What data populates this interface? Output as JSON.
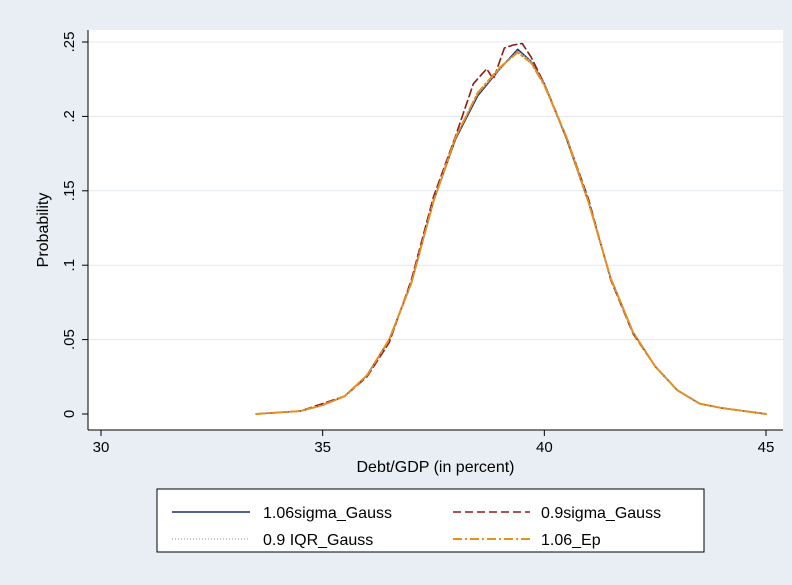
{
  "chart_data": {
    "type": "line",
    "title": "",
    "xlabel": "Debt/GDP (in percent)",
    "ylabel": "Probability",
    "xlim": [
      30,
      45
    ],
    "ylim": [
      0,
      0.25
    ],
    "x_ticks": [
      30,
      35,
      40,
      45
    ],
    "x_tick_labels": [
      "30",
      "35",
      "40",
      "45"
    ],
    "y_ticks": [
      0,
      0.05,
      0.1,
      0.15,
      0.2,
      0.25
    ],
    "y_tick_labels": [
      "0",
      ".05",
      ".1",
      ".15",
      ".2",
      ".25"
    ],
    "grid": "horizontal",
    "legend_position": "bottom",
    "series": [
      {
        "name": "1.06sigma_Gauss",
        "color": "#1a2f6b",
        "style": "solid",
        "x": [
          33.5,
          34.0,
          34.5,
          35.0,
          35.5,
          36.0,
          36.5,
          37.0,
          37.5,
          38.0,
          38.5,
          39.0,
          39.4,
          39.7,
          40.0,
          40.5,
          41.0,
          41.5,
          42.0,
          42.5,
          43.0,
          43.5,
          44.0,
          44.5,
          45.0
        ],
        "values": [
          0.0,
          0.001,
          0.002,
          0.006,
          0.012,
          0.026,
          0.05,
          0.088,
          0.143,
          0.185,
          0.214,
          0.232,
          0.245,
          0.237,
          0.222,
          0.185,
          0.142,
          0.091,
          0.055,
          0.032,
          0.016,
          0.007,
          0.004,
          0.002,
          0.0
        ]
      },
      {
        "name": "0.9sigma_Gauss",
        "color": "#8b1a1a",
        "style": "dashed",
        "x": [
          33.5,
          34.0,
          34.5,
          35.0,
          35.5,
          36.0,
          36.5,
          37.0,
          37.5,
          38.0,
          38.4,
          38.7,
          38.85,
          39.1,
          39.3,
          39.5,
          39.7,
          40.0,
          40.5,
          41.0,
          41.5,
          42.0,
          42.5,
          43.0,
          43.5,
          44.0,
          44.5,
          45.0
        ],
        "values": [
          0.0,
          0.001,
          0.002,
          0.007,
          0.012,
          0.025,
          0.048,
          0.09,
          0.146,
          0.187,
          0.222,
          0.232,
          0.225,
          0.246,
          0.248,
          0.249,
          0.24,
          0.222,
          0.186,
          0.144,
          0.09,
          0.054,
          0.032,
          0.016,
          0.007,
          0.004,
          0.002,
          0.0
        ]
      },
      {
        "name": "0.9 IQR_Gauss",
        "color": "#9aa6b2",
        "style": "dotted",
        "x": [
          33.5,
          34.0,
          34.5,
          35.0,
          35.5,
          36.0,
          36.5,
          37.0,
          37.5,
          38.0,
          38.5,
          39.0,
          39.4,
          39.7,
          40.0,
          40.5,
          41.0,
          41.5,
          42.0,
          42.5,
          43.0,
          43.5,
          44.0,
          44.5,
          45.0
        ],
        "values": [
          0.0,
          0.001,
          0.002,
          0.006,
          0.012,
          0.026,
          0.05,
          0.088,
          0.143,
          0.186,
          0.215,
          0.232,
          0.244,
          0.237,
          0.222,
          0.186,
          0.142,
          0.091,
          0.055,
          0.032,
          0.016,
          0.007,
          0.004,
          0.002,
          0.0
        ]
      },
      {
        "name": "1.06_Ep",
        "color": "#e8901a",
        "style": "dashdot",
        "x": [
          33.5,
          34.0,
          34.5,
          35.0,
          35.5,
          36.0,
          36.5,
          37.0,
          37.5,
          38.0,
          38.5,
          39.0,
          39.4,
          39.7,
          40.0,
          40.5,
          41.0,
          41.5,
          42.0,
          42.5,
          43.0,
          43.5,
          44.0,
          44.5,
          45.0
        ],
        "values": [
          0.0,
          0.001,
          0.002,
          0.006,
          0.012,
          0.026,
          0.05,
          0.088,
          0.143,
          0.186,
          0.216,
          0.233,
          0.243,
          0.236,
          0.221,
          0.186,
          0.142,
          0.091,
          0.055,
          0.032,
          0.016,
          0.007,
          0.004,
          0.002,
          0.0
        ]
      }
    ]
  }
}
